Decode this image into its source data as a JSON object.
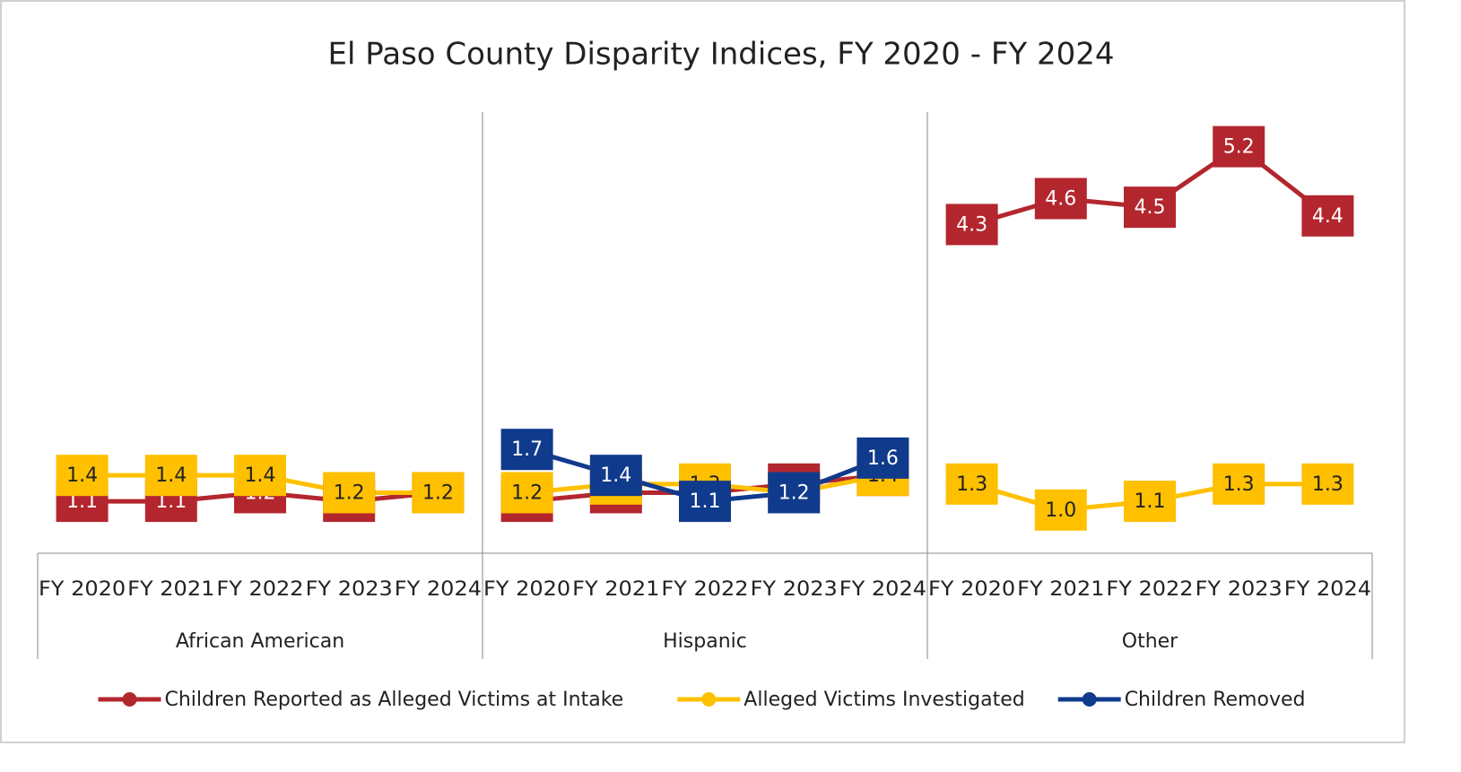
{
  "chart_data": {
    "type": "line",
    "title": "El Paso County Disparity Indices, FY 2020 - FY 2024",
    "groups": [
      {
        "name": "African American",
        "categories": [
          "FY 2020",
          "FY 2021",
          "FY 2022",
          "FY 2023",
          "FY 2024"
        ]
      },
      {
        "name": "Hispanic",
        "categories": [
          "FY 2020",
          "FY 2021",
          "FY 2022",
          "FY 2023",
          "FY 2024"
        ]
      },
      {
        "name": "Other",
        "categories": [
          "FY 2020",
          "FY 2021",
          "FY 2022",
          "FY 2023",
          "FY 2024"
        ]
      }
    ],
    "series": [
      {
        "name": "Children Reported as Alleged Victims at Intake",
        "color": "#b3262e",
        "label_text_color": "#ffffff",
        "values": [
          1.1,
          1.1,
          1.2,
          1.1,
          1.2,
          1.1,
          1.2,
          1.2,
          1.3,
          1.4,
          4.3,
          4.6,
          4.5,
          5.2,
          4.4
        ],
        "value_labels": [
          "1.1",
          "1.1",
          "1.2",
          "1.1",
          "1.2",
          "1.1",
          "1.2",
          "1.2",
          "1.3",
          "1.4",
          "4.3",
          "4.6",
          "4.5",
          "5.2",
          "4.4"
        ]
      },
      {
        "name": "Alleged Victims Investigated",
        "color": "#ffc000",
        "label_text_color": "#222222",
        "values": [
          1.4,
          1.4,
          1.4,
          1.2,
          1.2,
          1.2,
          1.3,
          1.3,
          1.2,
          1.4,
          1.3,
          1.0,
          1.1,
          1.3,
          1.3
        ],
        "value_labels": [
          "1.4",
          "1.4",
          "1.4",
          "1.2",
          "1.2",
          "1.2",
          "1.3",
          "1.3",
          "1.2",
          "1.4",
          "1.3",
          "1.0",
          "1.1",
          "1.3",
          "1.3"
        ]
      },
      {
        "name": "Children Removed",
        "color": "#103a8c",
        "label_text_color": "#ffffff",
        "values": [
          null,
          null,
          null,
          null,
          null,
          1.7,
          1.4,
          1.1,
          1.2,
          1.6,
          null,
          null,
          null,
          null,
          null
        ],
        "value_labels": [
          null,
          null,
          null,
          null,
          null,
          "1.7",
          "1.4",
          "1.1",
          "1.2",
          "1.6",
          null,
          null,
          null,
          null,
          null
        ]
      }
    ],
    "ylim": [
      0.5,
      5.6
    ],
    "legend": "bottom"
  }
}
